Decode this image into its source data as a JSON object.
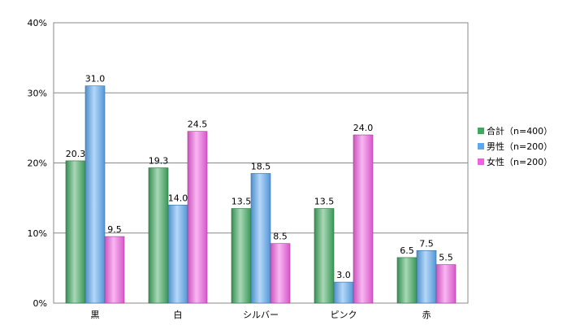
{
  "chart_data": {
    "type": "bar",
    "categories": [
      "黒",
      "白",
      "シルバー",
      "ピンク",
      "赤"
    ],
    "series": [
      {
        "name": "合計（n=400）",
        "values": [
          20.3,
          19.3,
          13.5,
          13.5,
          6.5
        ],
        "color": "#3fa860"
      },
      {
        "name": "男性（n=200）",
        "values": [
          31.0,
          14.0,
          18.5,
          3.0,
          7.5
        ],
        "color": "#5aa8f0"
      },
      {
        "name": "女性（n=200）",
        "values": [
          9.5,
          24.5,
          8.5,
          24.0,
          5.5
        ],
        "color": "#f060e0"
      }
    ],
    "yticks": [
      "0%",
      "10%",
      "20%",
      "30%",
      "40%"
    ],
    "ylim": [
      0,
      40
    ],
    "grid": true,
    "legend": "right"
  }
}
